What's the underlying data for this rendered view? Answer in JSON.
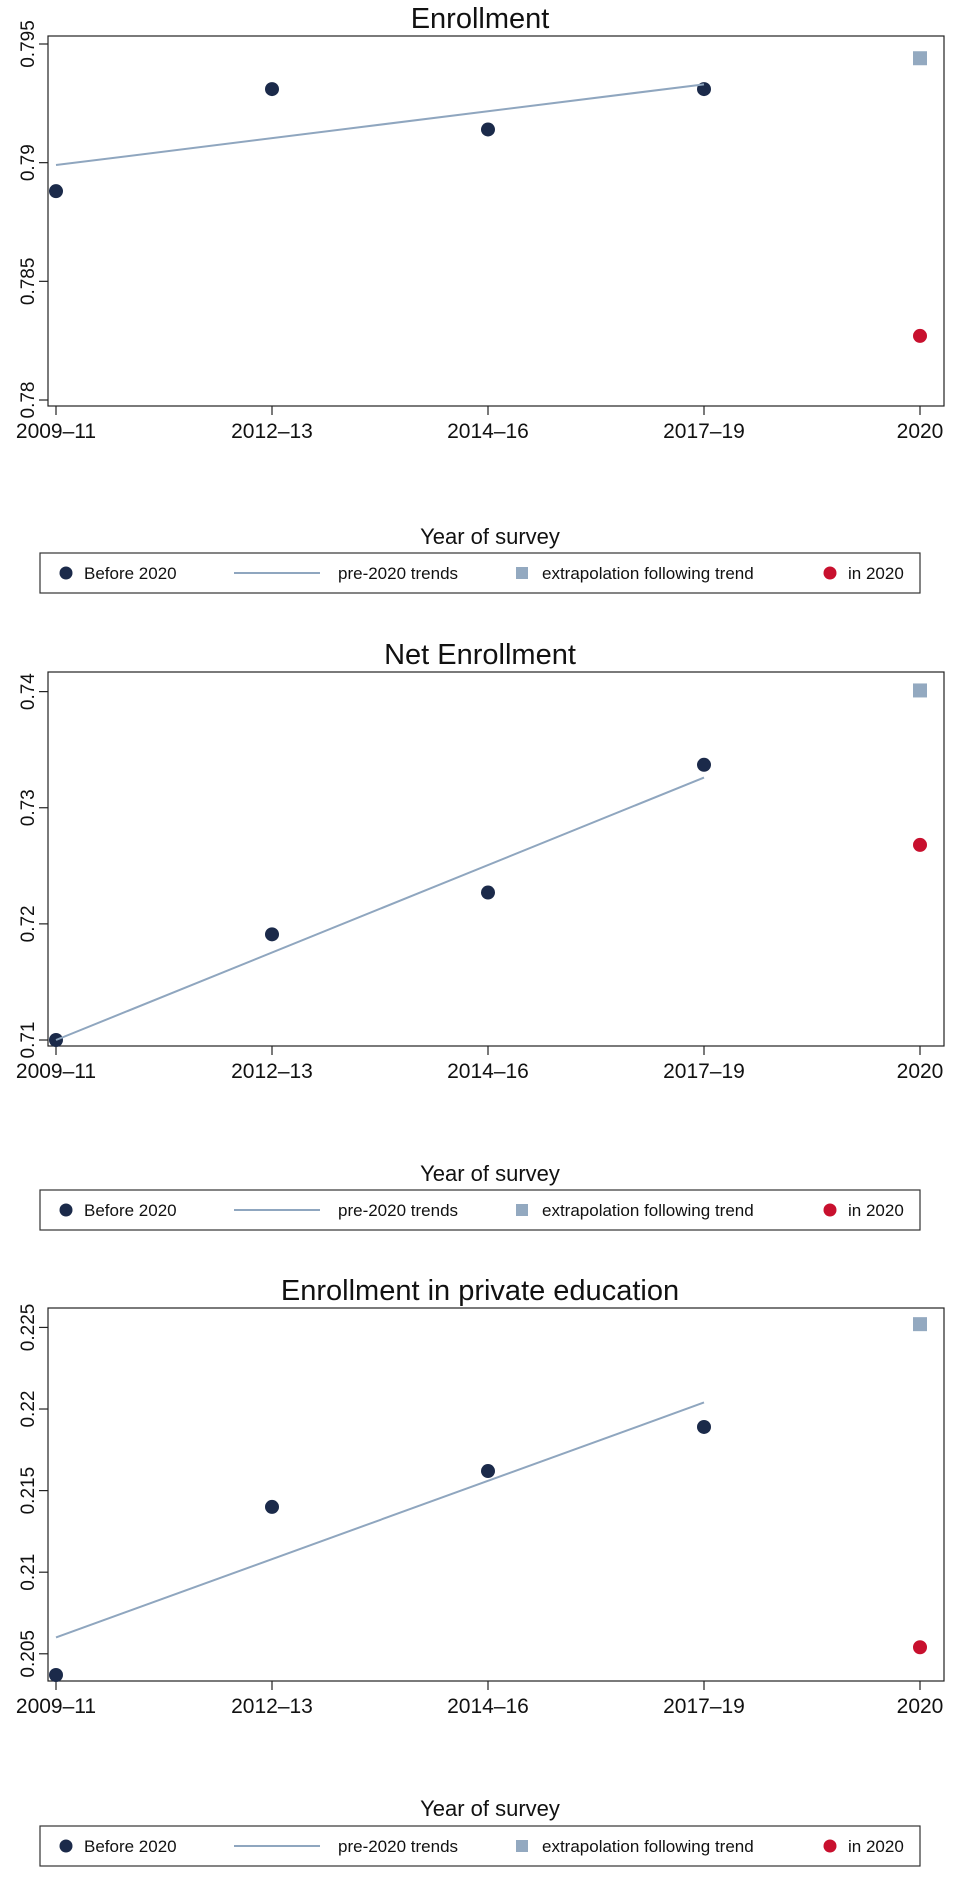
{
  "colors": {
    "before": "#1b2a4a",
    "trend": "#8fa6bf",
    "extrapolation": "#93a9c0",
    "in2020": "#c8102e",
    "axis": "#222222",
    "legend_border": "#333333"
  },
  "legend": {
    "before": "Before 2020",
    "trend": "pre-2020 trends",
    "extrapolation": "extrapolation following trend",
    "in2020": "in 2020"
  },
  "chart_data": [
    {
      "type": "scatter",
      "title": "Enrollment",
      "xlabel": "Year of survey",
      "ylabel": "",
      "categories": [
        "2009–11",
        "2012–13",
        "2014–16",
        "2017–19",
        "2020"
      ],
      "yticks": [
        "0.78",
        "0.785",
        "0.79",
        "0.795"
      ],
      "ylim": [
        0.78,
        0.795
      ],
      "grid": false,
      "legend_position": "bottom",
      "series": [
        {
          "key": "before",
          "marker": "circle",
          "points": [
            [
              0,
              0.7888
            ],
            [
              1,
              0.7931
            ],
            [
              2,
              0.7914
            ],
            [
              3,
              0.7931
            ]
          ]
        },
        {
          "key": "trend",
          "marker": "line",
          "points": [
            [
              0,
              0.7899
            ],
            [
              3,
              0.7933
            ]
          ]
        },
        {
          "key": "extrapolation",
          "marker": "square",
          "points": [
            [
              4,
              0.7944
            ]
          ]
        },
        {
          "key": "in2020",
          "marker": "circle",
          "points": [
            [
              4,
              0.7827
            ]
          ]
        }
      ]
    },
    {
      "type": "scatter",
      "title": "Net Enrollment",
      "xlabel": "Year of survey",
      "ylabel": "",
      "categories": [
        "2009–11",
        "2012–13",
        "2014–16",
        "2017–19",
        "2020"
      ],
      "yticks": [
        "0.71",
        "0.72",
        "0.73",
        "0.74"
      ],
      "ylim": [
        0.71,
        0.741
      ],
      "grid": false,
      "legend_position": "bottom",
      "series": [
        {
          "key": "before",
          "marker": "circle",
          "points": [
            [
              0,
              0.71
            ],
            [
              1,
              0.7191
            ],
            [
              2,
              0.7227
            ],
            [
              3,
              0.7337
            ]
          ]
        },
        {
          "key": "trend",
          "marker": "line",
          "points": [
            [
              0,
              0.71
            ],
            [
              3,
              0.7326
            ]
          ]
        },
        {
          "key": "extrapolation",
          "marker": "square",
          "points": [
            [
              4,
              0.7401
            ]
          ]
        },
        {
          "key": "in2020",
          "marker": "circle",
          "points": [
            [
              4,
              0.7268
            ]
          ]
        }
      ]
    },
    {
      "type": "scatter",
      "title": "Enrollment in private education",
      "xlabel": "Year of survey",
      "ylabel": "",
      "categories": [
        "2009–11",
        "2012–13",
        "2014–16",
        "2017–19",
        "2020"
      ],
      "yticks": [
        "0.205",
        "0.21",
        "0.215",
        "0.22",
        "0.225"
      ],
      "ylim": [
        0.2037,
        0.2257
      ],
      "grid": false,
      "legend_position": "bottom",
      "series": [
        {
          "key": "before",
          "marker": "circle",
          "points": [
            [
              0,
              0.2037
            ],
            [
              1,
              0.214
            ],
            [
              2,
              0.2162
            ],
            [
              3,
              0.2189
            ]
          ]
        },
        {
          "key": "trend",
          "marker": "line",
          "points": [
            [
              0,
              0.206
            ],
            [
              3,
              0.2204
            ]
          ]
        },
        {
          "key": "extrapolation",
          "marker": "square",
          "points": [
            [
              4,
              0.2252
            ]
          ]
        },
        {
          "key": "in2020",
          "marker": "circle",
          "points": [
            [
              4,
              0.2054
            ]
          ]
        }
      ]
    }
  ]
}
